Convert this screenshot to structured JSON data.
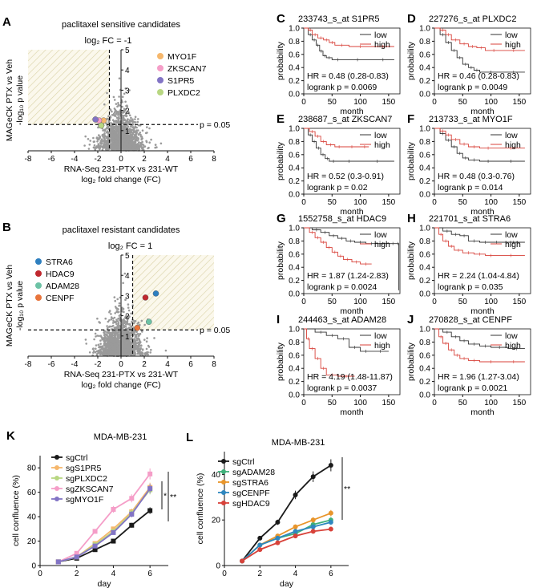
{
  "chart_data": [
    {
      "panel": "A",
      "type": "scatter",
      "title": "paclitaxel sensitive candidates",
      "threshold_label": "log₂ FC = -1",
      "p_label": "p = 0.05",
      "xlabel": "RNA-Seq 231-PTX vs 231-WT",
      "xlabel2": "log₂ fold change (FC)",
      "ylabel": "MAGeCK  PTX vs Veh",
      "ylabel2": "-log₁₀ p value",
      "xlim": [
        -8,
        8
      ],
      "ylim": [
        0,
        5
      ],
      "xticks": [
        "-8",
        "-6",
        "-4",
        "-2",
        "0",
        "2",
        "4",
        "6",
        "8"
      ],
      "yticks": [
        "1",
        "2",
        "3",
        "4",
        "5"
      ],
      "x_threshold": -1,
      "y_threshold": 1.3,
      "highlight": [
        {
          "name": "MYO1F",
          "color": "#f6b76c",
          "x": -1.5,
          "y": 1.5
        },
        {
          "name": "ZKSCAN7",
          "color": "#f59ec8",
          "x": -1.9,
          "y": 1.5
        },
        {
          "name": "S1PR5",
          "color": "#8274c5",
          "x": -2.2,
          "y": 1.55
        },
        {
          "name": "PLXDC2",
          "color": "#b8d782",
          "x": -1.7,
          "y": 1.25
        }
      ]
    },
    {
      "panel": "B",
      "type": "scatter",
      "title": "paclitaxel resistant candidates",
      "threshold_label": "log₂ FC = 1",
      "p_label": "p = 0.05",
      "xlabel": "RNA-Seq 231-PTX vs 231-WT",
      "xlabel2": "log₂ fold change (FC)",
      "ylabel": "MAGeCK  PTX vs Veh",
      "ylabel2": "-log₁₀ p value",
      "xlim": [
        -8,
        8
      ],
      "ylim": [
        0,
        5
      ],
      "xticks": [
        "-8",
        "-6",
        "-4",
        "-2",
        "0",
        "2",
        "4",
        "6",
        "8"
      ],
      "yticks": [
        "1",
        "2",
        "3",
        "4",
        "5"
      ],
      "x_threshold": 1,
      "y_threshold": 1.3,
      "highlight": [
        {
          "name": "STRA6",
          "color": "#2e7fbf",
          "x": 3.0,
          "y": 3.1
        },
        {
          "name": "HDAC9",
          "color": "#c0282e",
          "x": 2.1,
          "y": 2.9
        },
        {
          "name": "ADAM28",
          "color": "#6cc2a5",
          "x": 2.4,
          "y": 1.7
        },
        {
          "name": "CENPF",
          "color": "#e8743b",
          "x": 1.4,
          "y": 1.4
        }
      ]
    },
    {
      "panel": "C",
      "type": "line",
      "title": "233743_s_at S1PR5",
      "xlabel": "month",
      "ylabel": "probability",
      "xlim": [
        0,
        170
      ],
      "ylim": [
        0,
        1
      ],
      "xticks": [
        "0",
        "50",
        "100",
        "150"
      ],
      "yticks": [
        "0.0",
        "0.2",
        "0.4",
        "0.6",
        "0.8",
        "1.0"
      ],
      "hr": "HR = 0.48 (0.28-0.83)",
      "logrank": "logrank p = 0.0069",
      "series": [
        {
          "name": "low",
          "color": "#333333",
          "x": [
            0,
            8,
            15,
            22,
            28,
            34,
            40,
            50,
            70,
            120,
            160
          ],
          "values": [
            1,
            0.9,
            0.82,
            0.74,
            0.65,
            0.58,
            0.55,
            0.52,
            0.52,
            0.52,
            0.52
          ]
        },
        {
          "name": "high",
          "color": "#d8423a",
          "x": [
            0,
            8,
            15,
            25,
            35,
            45,
            55,
            80,
            120,
            160
          ],
          "values": [
            1,
            0.97,
            0.9,
            0.85,
            0.82,
            0.78,
            0.74,
            0.72,
            0.72,
            0.72
          ]
        }
      ]
    },
    {
      "panel": "D",
      "type": "line",
      "title": "227276_s_at PLXDC2",
      "xlabel": "month",
      "ylabel": "probability",
      "xlim": [
        0,
        170
      ],
      "ylim": [
        0,
        1
      ],
      "xticks": [
        "0",
        "50",
        "100",
        "150"
      ],
      "yticks": [
        "0.0",
        "0.2",
        "0.4",
        "0.6",
        "0.8",
        "1.0"
      ],
      "hr": "HR = 0.46 (0.28-0.83)",
      "logrank": "logrank p = 0.0049",
      "series": [
        {
          "name": "low",
          "color": "#333333",
          "x": [
            0,
            10,
            20,
            30,
            40,
            50,
            60,
            70,
            80,
            120,
            160
          ],
          "values": [
            1,
            0.9,
            0.78,
            0.66,
            0.55,
            0.45,
            0.4,
            0.36,
            0.33,
            0.33,
            0.33
          ]
        },
        {
          "name": "high",
          "color": "#d8423a",
          "x": [
            0,
            10,
            20,
            30,
            45,
            60,
            75,
            90,
            120,
            160
          ],
          "values": [
            1,
            0.97,
            0.9,
            0.82,
            0.76,
            0.72,
            0.7,
            0.66,
            0.66,
            0.66
          ]
        }
      ]
    },
    {
      "panel": "E",
      "type": "line",
      "title": "238687_s_at ZKSCAN7",
      "xlabel": "month",
      "ylabel": "probability",
      "xlim": [
        0,
        170
      ],
      "ylim": [
        0,
        1
      ],
      "xticks": [
        "0",
        "50",
        "100",
        "150"
      ],
      "yticks": [
        "0.0",
        "0.2",
        "0.4",
        "0.6",
        "0.8",
        "1.0"
      ],
      "hr": "HR = 0.52 (0.3-0.91)",
      "logrank": "logrank p = 0.02",
      "series": [
        {
          "name": "low",
          "color": "#333333",
          "x": [
            0,
            8,
            15,
            22,
            30,
            38,
            45,
            60,
            100,
            160
          ],
          "values": [
            1,
            0.9,
            0.8,
            0.7,
            0.6,
            0.54,
            0.5,
            0.5,
            0.5,
            0.5
          ]
        },
        {
          "name": "high",
          "color": "#d8423a",
          "x": [
            0,
            10,
            20,
            30,
            40,
            55,
            70,
            100,
            115
          ],
          "values": [
            1,
            0.95,
            0.88,
            0.8,
            0.75,
            0.72,
            0.72,
            0.72,
            0.72
          ]
        }
      ]
    },
    {
      "panel": "F",
      "type": "line",
      "title": "213733_s_at MYO1F",
      "xlabel": "month",
      "ylabel": "probability",
      "xlim": [
        0,
        170
      ],
      "ylim": [
        0,
        1
      ],
      "xticks": [
        "0",
        "50",
        "100",
        "150"
      ],
      "yticks": [
        "0.0",
        "0.2",
        "0.4",
        "0.6",
        "0.8",
        "1.0"
      ],
      "hr": "HR = 0.48 (0.3-0.76)",
      "logrank": "logrank p = 0.014",
      "series": [
        {
          "name": "low",
          "color": "#333333",
          "x": [
            0,
            10,
            20,
            30,
            40,
            50,
            60,
            80,
            110,
            160
          ],
          "values": [
            1,
            0.92,
            0.82,
            0.72,
            0.62,
            0.55,
            0.52,
            0.5,
            0.5,
            0.5
          ]
        },
        {
          "name": "high",
          "color": "#d8423a",
          "x": [
            0,
            10,
            20,
            30,
            45,
            60,
            80,
            110,
            160
          ],
          "values": [
            1,
            0.96,
            0.9,
            0.83,
            0.76,
            0.72,
            0.7,
            0.7,
            0.7
          ]
        }
      ]
    },
    {
      "panel": "G",
      "type": "line",
      "title": "1552758_s_at HDAC9",
      "xlabel": "month",
      "ylabel": "probability",
      "xlim": [
        0,
        170
      ],
      "ylim": [
        0,
        1
      ],
      "xticks": [
        "0",
        "50",
        "100",
        "150"
      ],
      "yticks": [
        "0.0",
        "0.2",
        "0.4",
        "0.6",
        "0.8",
        "1.0"
      ],
      "hr": "HR = 1.87 (1.24-2.83)",
      "logrank": "logrank p = 0.0024",
      "series": [
        {
          "name": "low",
          "color": "#333333",
          "x": [
            0,
            15,
            30,
            45,
            60,
            75,
            90,
            110,
            130,
            150,
            165,
            168
          ],
          "values": [
            1,
            0.97,
            0.93,
            0.88,
            0.84,
            0.8,
            0.78,
            0.76,
            0.76,
            0.76,
            0.76,
            0.05
          ]
        },
        {
          "name": "high",
          "color": "#d8423a",
          "x": [
            0,
            10,
            20,
            30,
            40,
            50,
            60,
            70,
            85,
            100,
            120
          ],
          "values": [
            1,
            0.93,
            0.85,
            0.78,
            0.7,
            0.63,
            0.57,
            0.52,
            0.48,
            0.45,
            0.45
          ]
        }
      ]
    },
    {
      "panel": "H",
      "type": "line",
      "title": "221701_s_at STRA6",
      "xlabel": "month",
      "ylabel": "probability",
      "xlim": [
        0,
        170
      ],
      "ylim": [
        0,
        1
      ],
      "xticks": [
        "0",
        "50",
        "100",
        "150"
      ],
      "yticks": [
        "0.0",
        "0.2",
        "0.4",
        "0.6",
        "0.8",
        "1.0"
      ],
      "hr": "HR = 2.24 (1.04-4.84)",
      "logrank": "logrank p = 0.035",
      "series": [
        {
          "name": "low",
          "color": "#333333",
          "x": [
            0,
            15,
            30,
            45,
            60,
            80,
            100,
            120,
            160
          ],
          "values": [
            1,
            0.95,
            0.9,
            0.88,
            0.8,
            0.78,
            0.78,
            0.78,
            0.78
          ]
        },
        {
          "name": "high",
          "color": "#d8423a",
          "x": [
            0,
            8,
            15,
            25,
            35,
            50,
            70,
            90,
            110,
            160
          ],
          "values": [
            1,
            0.9,
            0.8,
            0.72,
            0.66,
            0.62,
            0.6,
            0.58,
            0.58,
            0.58
          ]
        }
      ]
    },
    {
      "panel": "I",
      "type": "line",
      "title": "244463_s_at ADAM28",
      "xlabel": "month",
      "ylabel": "probability",
      "xlim": [
        0,
        170
      ],
      "ylim": [
        0,
        1
      ],
      "xticks": [
        "0",
        "50",
        "100",
        "150"
      ],
      "yticks": [
        "0.0",
        "0.2",
        "0.4",
        "0.6",
        "0.8",
        "1.0"
      ],
      "hr": "HR = 4.19 (1.48-11.87)",
      "logrank": "logrank p = 0.0037",
      "series": [
        {
          "name": "low",
          "color": "#333333",
          "x": [
            0,
            20,
            40,
            60,
            80,
            100,
            120,
            150
          ],
          "values": [
            1,
            0.95,
            0.9,
            0.85,
            0.72,
            0.66,
            0.66,
            0.66
          ]
        },
        {
          "name": "high",
          "color": "#d8423a",
          "x": [
            0,
            5,
            10,
            20,
            30,
            40,
            60,
            90
          ],
          "values": [
            1,
            0.85,
            0.7,
            0.55,
            0.4,
            0.3,
            0.28,
            0.28
          ]
        }
      ]
    },
    {
      "panel": "J",
      "type": "line",
      "title": "270828_s_at CENPF",
      "xlabel": "month",
      "ylabel": "probability",
      "xlim": [
        0,
        170
      ],
      "ylim": [
        0,
        1
      ],
      "xticks": [
        "0",
        "50",
        "100",
        "150"
      ],
      "yticks": [
        "0.0",
        "0.2",
        "0.4",
        "0.6",
        "0.8",
        "1.0"
      ],
      "hr": "HR = 1.96 (1.27-3.04)",
      "logrank": "logrank p = 0.0021",
      "series": [
        {
          "name": "low",
          "color": "#333333",
          "x": [
            0,
            15,
            30,
            45,
            60,
            80,
            100,
            130,
            160
          ],
          "values": [
            1,
            0.95,
            0.88,
            0.82,
            0.77,
            0.74,
            0.72,
            0.7,
            0.7
          ]
        },
        {
          "name": "high",
          "color": "#d8423a",
          "x": [
            0,
            8,
            15,
            25,
            35,
            45,
            60,
            80,
            120,
            160
          ],
          "values": [
            1,
            0.88,
            0.78,
            0.68,
            0.6,
            0.55,
            0.52,
            0.5,
            0.5,
            0.5
          ]
        }
      ]
    },
    {
      "panel": "K",
      "type": "line",
      "title": "MDA-MB-231",
      "xlabel": "day",
      "ylabel": "cell confluence (%)",
      "xlim": [
        0,
        7
      ],
      "ylim": [
        0,
        90
      ],
      "xticks": [
        "0",
        "2",
        "4",
        "6"
      ],
      "yticks": [
        "0",
        "20",
        "40",
        "60",
        "80"
      ],
      "x": [
        1,
        2,
        3,
        4,
        5,
        6
      ],
      "significance": [
        "*",
        "**"
      ],
      "series": [
        {
          "name": "sgCtrl",
          "color": "#1a1a1a",
          "values": [
            3,
            6,
            13,
            20,
            33,
            45
          ]
        },
        {
          "name": "sgS1PR5",
          "color": "#f6b76c",
          "values": [
            3,
            7,
            18,
            30,
            44,
            64
          ]
        },
        {
          "name": "sgPLXDC2",
          "color": "#b8d782",
          "values": [
            3,
            7,
            17,
            28,
            43,
            62
          ]
        },
        {
          "name": "sgZKSCAN7",
          "color": "#f59ec8",
          "values": [
            3,
            10,
            28,
            46,
            55,
            75
          ]
        },
        {
          "name": "sgMYO1F",
          "color": "#8274c5",
          "values": [
            3,
            7,
            16,
            27,
            42,
            63
          ]
        }
      ]
    },
    {
      "panel": "L",
      "type": "line",
      "title": "MDA-MB-231",
      "xlabel": "day",
      "ylabel": "cell confluence (%)",
      "xlim": [
        0,
        7
      ],
      "ylim": [
        0,
        50
      ],
      "xticks": [
        "0",
        "2",
        "4",
        "6"
      ],
      "yticks": [
        "0",
        "20",
        "40"
      ],
      "x": [
        1,
        2,
        3,
        4,
        5,
        6
      ],
      "significance": [
        "**"
      ],
      "series": [
        {
          "name": "sgCtrl",
          "color": "#1a1a1a",
          "values": [
            2,
            12,
            19,
            31,
            39,
            44
          ]
        },
        {
          "name": "sgADAM28",
          "color": "#3fb07a",
          "values": [
            2,
            9,
            12,
            14,
            18,
            20
          ]
        },
        {
          "name": "sgSTRA6",
          "color": "#e8952b",
          "values": [
            2,
            9,
            13,
            17,
            20,
            23
          ]
        },
        {
          "name": "sgCENPF",
          "color": "#2e87bf",
          "values": [
            2,
            9,
            12,
            15,
            17,
            19
          ]
        },
        {
          "name": "sgHDAC9",
          "color": "#d8423a",
          "values": [
            2,
            7,
            10,
            13,
            15,
            16
          ]
        }
      ]
    }
  ]
}
